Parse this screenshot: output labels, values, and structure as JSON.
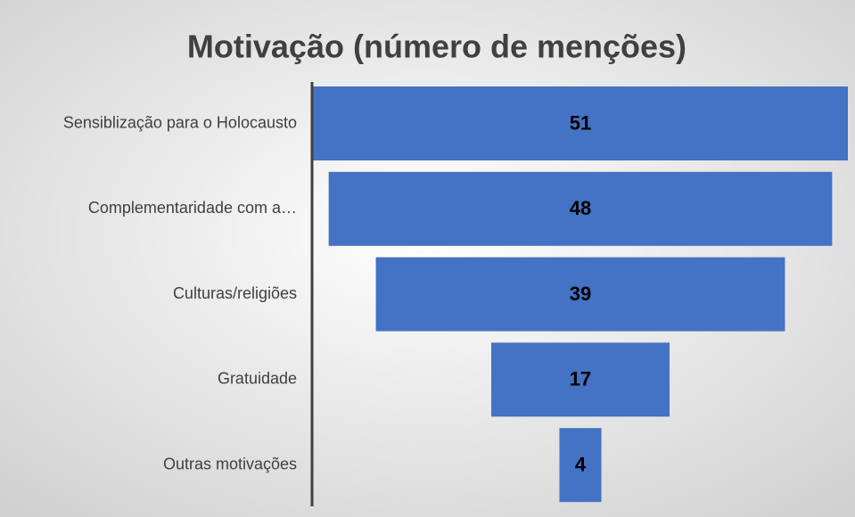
{
  "chart_data": {
    "type": "funnel",
    "title": "Motivação (número de menções)",
    "categories": [
      "Sensiblização para o Holocausto",
      "Complementaridade com a…",
      "Culturas/religiões",
      "Gratuidade",
      "Outras motivações"
    ],
    "values": [
      51,
      48,
      39,
      17,
      4
    ],
    "color": "#4472c4"
  }
}
